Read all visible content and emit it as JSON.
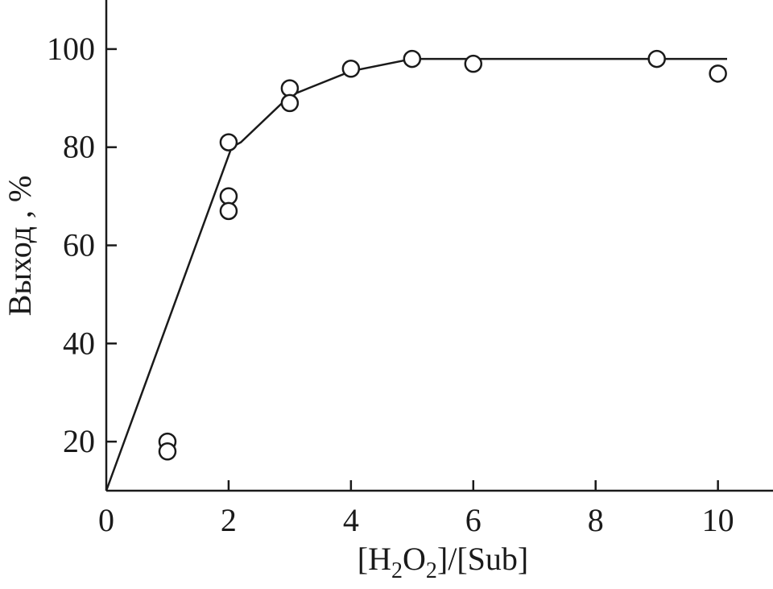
{
  "chart_data": {
    "type": "scatter",
    "xlabel": {
      "base": "[H",
      "sub1": "2",
      "mid": "O",
      "sub2": "2",
      "tail": "]/[Sub]"
    },
    "ylabel": "Выход , %",
    "xlim": [
      0,
      10.9
    ],
    "ylim": [
      10,
      110
    ],
    "x_ticks": [
      0,
      2,
      4,
      6,
      8,
      10
    ],
    "y_ticks": [
      20,
      40,
      60,
      80,
      100
    ],
    "x_tick_labels": [
      "0",
      "2",
      "4",
      "6",
      "8",
      "10"
    ],
    "y_tick_labels": [
      "20",
      "40",
      "60",
      "80",
      "100"
    ],
    "points": [
      {
        "x": 1,
        "y": 20
      },
      {
        "x": 1,
        "y": 18
      },
      {
        "x": 2,
        "y": 81
      },
      {
        "x": 2,
        "y": 70
      },
      {
        "x": 2,
        "y": 67
      },
      {
        "x": 3,
        "y": 92
      },
      {
        "x": 3,
        "y": 89
      },
      {
        "x": 4,
        "y": 96
      },
      {
        "x": 5,
        "y": 98
      },
      {
        "x": 6,
        "y": 97
      },
      {
        "x": 9,
        "y": 98
      },
      {
        "x": 10,
        "y": 95
      }
    ],
    "fit_line": [
      {
        "x": 0,
        "y": 10
      },
      {
        "x": 2.05,
        "y": 80
      },
      {
        "x": 2.2,
        "y": 81
      },
      {
        "x": 3,
        "y": 90.5
      },
      {
        "x": 4,
        "y": 95.5
      },
      {
        "x": 5,
        "y": 98
      },
      {
        "x": 6,
        "y": 98
      },
      {
        "x": 10.15,
        "y": 98
      }
    ],
    "marker": "open-circle",
    "grid": false,
    "colors": {
      "ink": "#1a1a1a",
      "background": "#ffffff"
    }
  }
}
